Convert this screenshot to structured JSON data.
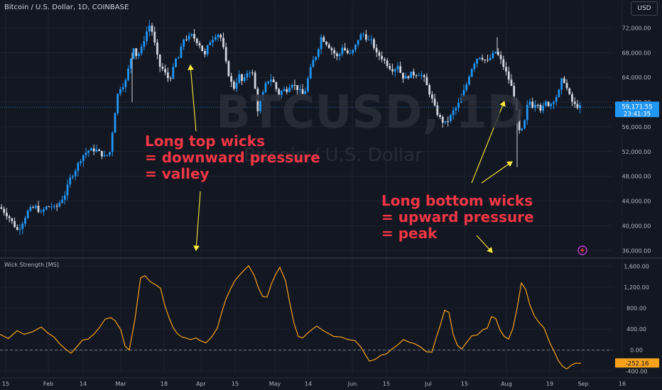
{
  "header": {
    "symbol_desc": "Bitcoin / U.S. Dollar, 1D, COINBASE"
  },
  "currency_button": "USD",
  "watermark": {
    "ticker": "BTCUSD, 1D",
    "name": "Bitcoin / U.S. Dollar"
  },
  "annotations": {
    "top_wicks": [
      "Long top wicks",
      "= downward pressure",
      "= valley"
    ],
    "bottom_wicks": [
      "Long bottom wicks",
      "= upward pressure",
      "= peak"
    ]
  },
  "indicator": {
    "title": "Wick Strength [MS]"
  },
  "colors": {
    "background": "#131722",
    "up_candle": "#2196f3",
    "down_candle": "#d1d4dc",
    "indicator_line": "#f7a21b",
    "annotation_text": "#f23645",
    "arrow": "#ffeb3b"
  },
  "icons": {
    "alert": "lightning-icon"
  },
  "chart_data": [
    {
      "type": "candlestick",
      "ylim": [
        35000,
        74000
      ],
      "yticks": [
        36000,
        40000,
        44000,
        48000,
        52000,
        56000,
        60000,
        64000,
        68000,
        72000
      ],
      "ytick_labels": [
        "36,000.00",
        "40,000.00",
        "44,000.00",
        "48,000.00",
        "52,000.00",
        "56,000.00",
        "60,000.00",
        "64,000.00",
        "68,000.00",
        "72,000.00"
      ],
      "last_price": 59171.55,
      "last_price_label": "59,171.55",
      "countdown": "23:41:35",
      "xtick_labels": [
        "15",
        "Feb",
        "14",
        "Mar",
        "18",
        "Apr",
        "15",
        "May",
        "14",
        "Jun",
        "15",
        "Jul",
        "15",
        "Aug",
        "19",
        "Sep",
        "16"
      ],
      "close_path": [
        [
          0,
          43000
        ],
        [
          12,
          41500
        ],
        [
          25,
          39200
        ],
        [
          30,
          40200
        ],
        [
          40,
          42500
        ],
        [
          50,
          43100
        ],
        [
          58,
          42000
        ],
        [
          64,
          43000
        ],
        [
          72,
          43200
        ],
        [
          78,
          42800
        ],
        [
          86,
          44100
        ],
        [
          92,
          45200
        ],
        [
          98,
          47500
        ],
        [
          105,
          48800
        ],
        [
          112,
          50500
        ],
        [
          118,
          51600
        ],
        [
          125,
          52200
        ],
        [
          135,
          52300
        ],
        [
          148,
          51100
        ],
        [
          155,
          52000
        ],
        [
          160,
          57000
        ],
        [
          166,
          61500
        ],
        [
          170,
          62500
        ],
        [
          176,
          63000
        ],
        [
          182,
          66000
        ],
        [
          188,
          69000
        ],
        [
          192,
          67500
        ],
        [
          198,
          68200
        ],
        [
          204,
          70600
        ],
        [
          210,
          72500
        ],
        [
          215,
          71200
        ],
        [
          220,
          68000
        ],
        [
          225,
          65800
        ],
        [
          230,
          65200
        ],
        [
          236,
          63900
        ],
        [
          242,
          64200
        ],
        [
          246,
          66800
        ],
        [
          252,
          67200
        ],
        [
          258,
          70200
        ],
        [
          264,
          70300
        ],
        [
          270,
          70800
        ],
        [
          276,
          70000
        ],
        [
          282,
          69200
        ],
        [
          288,
          67400
        ],
        [
          294,
          69600
        ],
        [
          300,
          70400
        ],
        [
          306,
          71200
        ],
        [
          312,
          70200
        ],
        [
          318,
          66400
        ],
        [
          324,
          63500
        ],
        [
          330,
          62200
        ],
        [
          336,
          64500
        ],
        [
          342,
          63000
        ],
        [
          348,
          64800
        ],
        [
          354,
          65200
        ],
        [
          358,
          63500
        ],
        [
          362,
          58500
        ],
        [
          368,
          60500
        ],
        [
          374,
          62800
        ],
        [
          380,
          64000
        ],
        [
          386,
          63000
        ],
        [
          392,
          61200
        ],
        [
          398,
          62000
        ],
        [
          404,
          62000
        ],
        [
          410,
          63200
        ],
        [
          416,
          62500
        ],
        [
          422,
          61800
        ],
        [
          428,
          61000
        ],
        [
          434,
          64000
        ],
        [
          440,
          66500
        ],
        [
          446,
          67800
        ],
        [
          452,
          70500
        ],
        [
          458,
          69800
        ],
        [
          464,
          68900
        ],
        [
          470,
          68000
        ],
        [
          476,
          67100
        ],
        [
          482,
          69000
        ],
        [
          488,
          68000
        ],
        [
          494,
          67700
        ],
        [
          500,
          69000
        ],
        [
          506,
          70700
        ],
        [
          512,
          71000
        ],
        [
          518,
          70000
        ],
        [
          524,
          69800
        ],
        [
          530,
          67800
        ],
        [
          536,
          67400
        ],
        [
          542,
          66600
        ],
        [
          548,
          65700
        ],
        [
          554,
          65200
        ],
        [
          560,
          66000
        ],
        [
          566,
          64100
        ],
        [
          572,
          63900
        ],
        [
          578,
          64600
        ],
        [
          584,
          64500
        ],
        [
          590,
          64600
        ],
        [
          596,
          64100
        ],
        [
          602,
          62300
        ],
        [
          608,
          60500
        ],
        [
          614,
          58500
        ],
        [
          620,
          57300
        ],
        [
          626,
          56500
        ],
        [
          632,
          57200
        ],
        [
          638,
          58500
        ],
        [
          644,
          59300
        ],
        [
          650,
          60900
        ],
        [
          656,
          62600
        ],
        [
          662,
          65000
        ],
        [
          668,
          66500
        ],
        [
          674,
          67500
        ],
        [
          680,
          67100
        ],
        [
          686,
          66500
        ],
        [
          692,
          67400
        ],
        [
          698,
          68200
        ],
        [
          704,
          67000
        ],
        [
          710,
          65500
        ],
        [
          716,
          63800
        ],
        [
          722,
          61800
        ],
        [
          728,
          58000
        ],
        [
          732,
          54500
        ],
        [
          738,
          56500
        ],
        [
          744,
          60500
        ],
        [
          750,
          59300
        ],
        [
          756,
          60200
        ],
        [
          762,
          58600
        ],
        [
          768,
          59900
        ],
        [
          774,
          59500
        ],
        [
          780,
          60500
        ],
        [
          786,
          61300
        ],
        [
          792,
          64200
        ],
        [
          798,
          62200
        ],
        [
          804,
          60300
        ],
        [
          810,
          59400
        ],
        [
          818,
          59171
        ]
      ],
      "top_wick_markers": [
        [
          186,
          60000
        ],
        [
          700,
          70500
        ]
      ],
      "bottom_wick_markers": [
        [
          728,
          49500
        ]
      ]
    },
    {
      "type": "line",
      "title": "Wick Strength [MS]",
      "ylim": [
        -450,
        1700
      ],
      "yticks": [
        -400,
        0,
        400,
        800,
        1200,
        1600
      ],
      "ytick_labels": [
        "-400.00",
        "0.00",
        "400.00",
        "800.00",
        "1,200.00",
        "1,600.00"
      ],
      "last_value": -252.16,
      "last_value_label": "-252.16",
      "points": [
        [
          0,
          300
        ],
        [
          12,
          220
        ],
        [
          24,
          370
        ],
        [
          34,
          300
        ],
        [
          46,
          350
        ],
        [
          58,
          440
        ],
        [
          68,
          320
        ],
        [
          76,
          250
        ],
        [
          84,
          120
        ],
        [
          92,
          20
        ],
        [
          100,
          -60
        ],
        [
          108,
          60
        ],
        [
          116,
          190
        ],
        [
          124,
          210
        ],
        [
          132,
          300
        ],
        [
          140,
          430
        ],
        [
          148,
          590
        ],
        [
          156,
          620
        ],
        [
          162,
          560
        ],
        [
          170,
          390
        ],
        [
          176,
          80
        ],
        [
          182,
          0
        ],
        [
          190,
          590
        ],
        [
          198,
          1380
        ],
        [
          204,
          1420
        ],
        [
          212,
          1300
        ],
        [
          220,
          1240
        ],
        [
          226,
          1180
        ],
        [
          232,
          850
        ],
        [
          238,
          620
        ],
        [
          244,
          420
        ],
        [
          250,
          310
        ],
        [
          256,
          250
        ],
        [
          262,
          230
        ],
        [
          268,
          200
        ],
        [
          276,
          230
        ],
        [
          282,
          180
        ],
        [
          290,
          140
        ],
        [
          298,
          250
        ],
        [
          306,
          420
        ],
        [
          312,
          710
        ],
        [
          318,
          970
        ],
        [
          324,
          1150
        ],
        [
          330,
          1310
        ],
        [
          336,
          1410
        ],
        [
          342,
          1500
        ],
        [
          350,
          1610
        ],
        [
          358,
          1420
        ],
        [
          364,
          1180
        ],
        [
          370,
          1020
        ],
        [
          376,
          1010
        ],
        [
          382,
          1260
        ],
        [
          388,
          1440
        ],
        [
          394,
          1580
        ],
        [
          402,
          1320
        ],
        [
          408,
          900
        ],
        [
          414,
          510
        ],
        [
          420,
          260
        ],
        [
          426,
          230
        ],
        [
          432,
          310
        ],
        [
          440,
          400
        ],
        [
          446,
          460
        ],
        [
          454,
          380
        ],
        [
          462,
          320
        ],
        [
          470,
          260
        ],
        [
          480,
          250
        ],
        [
          490,
          200
        ],
        [
          500,
          180
        ],
        [
          508,
          60
        ],
        [
          514,
          -80
        ],
        [
          520,
          -210
        ],
        [
          528,
          -180
        ],
        [
          536,
          -100
        ],
        [
          544,
          -70
        ],
        [
          552,
          20
        ],
        [
          560,
          100
        ],
        [
          568,
          200
        ],
        [
          576,
          150
        ],
        [
          584,
          120
        ],
        [
          592,
          60
        ],
        [
          600,
          -30
        ],
        [
          608,
          -40
        ],
        [
          614,
          230
        ],
        [
          620,
          480
        ],
        [
          626,
          760
        ],
        [
          632,
          720
        ],
        [
          638,
          300
        ],
        [
          644,
          90
        ],
        [
          650,
          20
        ],
        [
          656,
          130
        ],
        [
          664,
          270
        ],
        [
          672,
          290
        ],
        [
          680,
          390
        ],
        [
          686,
          420
        ],
        [
          692,
          640
        ],
        [
          698,
          600
        ],
        [
          704,
          380
        ],
        [
          710,
          260
        ],
        [
          716,
          210
        ],
        [
          722,
          410
        ],
        [
          728,
          800
        ],
        [
          734,
          1280
        ],
        [
          740,
          1160
        ],
        [
          746,
          860
        ],
        [
          752,
          660
        ],
        [
          758,
          540
        ],
        [
          766,
          420
        ],
        [
          774,
          140
        ],
        [
          780,
          -20
        ],
        [
          786,
          -200
        ],
        [
          792,
          -310
        ],
        [
          798,
          -360
        ],
        [
          804,
          -290
        ],
        [
          810,
          -250
        ],
        [
          818,
          -252
        ]
      ]
    }
  ]
}
